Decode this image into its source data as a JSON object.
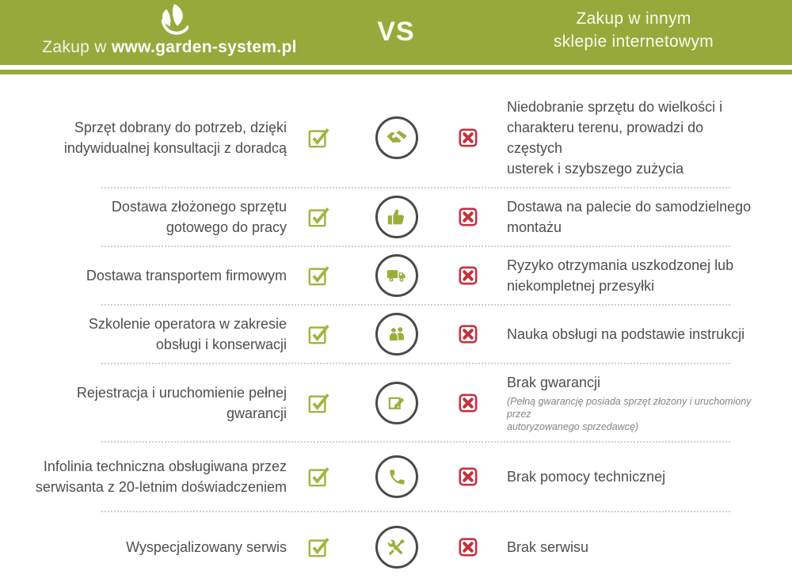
{
  "colors": {
    "brand_green": "#98a93b",
    "check_green": "#a2b43f",
    "cross_red": "#c4323e",
    "text_gray": "#4e4e4e",
    "circle_border": "#4a4a4a"
  },
  "header": {
    "left_prefix": "Zakup w",
    "left_brand": "www.garden-system.pl",
    "logo": "garden-system-leaf-logo",
    "vs_label": "VS",
    "right_title": "Zakup w innym\nsklepie internetowym"
  },
  "rows": [
    {
      "left": "Sprzęt dobrany do potrzeb, dzięki\nindywidualnej konsultacji z doradcą",
      "pros_mark": "check",
      "icon": "handshake-icon",
      "cons_mark": "cross",
      "right": "Niedobranie sprzętu do wielkości i\ncharakteru terenu, prowadzi do częstych\nusterek i szybszego zużycia"
    },
    {
      "left": "Dostawa złożonego sprzętu\ngotowego do pracy",
      "pros_mark": "check",
      "icon": "thumbs-up-icon",
      "cons_mark": "cross",
      "right": "Dostawa na palecie do samodzielnego\nmontażu"
    },
    {
      "left": "Dostawa transportem firmowym",
      "pros_mark": "check",
      "icon": "truck-icon",
      "cons_mark": "cross",
      "right": "Ryzyko otrzymania uszkodzonej lub\nniekompletnej przesyłki"
    },
    {
      "left": "Szkolenie operatora w zakresie\nobsługi i konserwacji",
      "pros_mark": "check",
      "icon": "people-icon",
      "cons_mark": "cross",
      "right": "Nauka obsługi na podstawie instrukcji"
    },
    {
      "left": "Rejestracja i uruchomienie pełnej\ngwarancji",
      "pros_mark": "check",
      "icon": "edit-icon",
      "cons_mark": "cross",
      "right": "Brak gwarancji",
      "note": "(Pełną gwarancję posiada sprzęt złożony i uruchomiony przez\nautoryzowanego sprzedawcę)"
    },
    {
      "left": "Infolinia techniczna obsługiwana przez\nserwisanta z 20-letnim doświadczeniem",
      "pros_mark": "check",
      "icon": "phone-icon",
      "cons_mark": "cross",
      "right": "Brak pomocy technicznej"
    },
    {
      "left": "Wyspecjalizowany serwis",
      "pros_mark": "check",
      "icon": "tools-icon",
      "cons_mark": "cross",
      "right": "Brak serwisu"
    }
  ]
}
